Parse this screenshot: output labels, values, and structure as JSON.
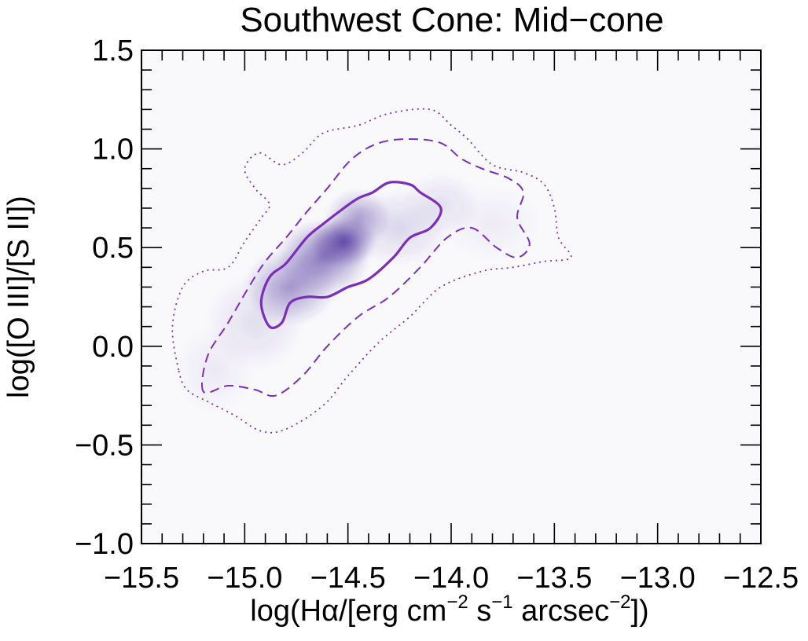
{
  "chart_data": {
    "type": "heatmap",
    "title": "Southwest Cone: Mid−cone",
    "xlabel": {
      "parts": [
        "log(H",
        "α",
        "/[erg cm",
        "−2",
        " s",
        "−1",
        " arcsec",
        "−2",
        "])"
      ]
    },
    "ylabel": "log([O III]/[S II])",
    "xlim": [
      -15.5,
      -12.5
    ],
    "ylim": [
      -1.0,
      1.5
    ],
    "xticks": [
      -15.5,
      -15.0,
      -14.5,
      -14.0,
      -13.5,
      -13.0,
      -12.5
    ],
    "xtick_labels": [
      "−15.5",
      "−15.0",
      "−14.5",
      "−14.0",
      "−13.5",
      "−13.0",
      "−12.5"
    ],
    "yticks": [
      -1.0,
      -0.5,
      0.0,
      0.5,
      1.0,
      1.5
    ],
    "ytick_labels": [
      "−1.0",
      "−0.5",
      "0.0",
      "0.5",
      "1.0",
      "1.5"
    ],
    "grid": false,
    "colors": {
      "background": "#f9f9fc",
      "density": "#4a2f9a",
      "contour": "#7b2fb5"
    },
    "density_blobs": [
      {
        "x": -14.52,
        "y": 0.53,
        "sx": 0.1,
        "sy": 0.08,
        "w": 0.85
      },
      {
        "x": -14.62,
        "y": 0.45,
        "sx": 0.14,
        "sy": 0.12,
        "w": 0.65
      },
      {
        "x": -14.78,
        "y": 0.3,
        "sx": 0.14,
        "sy": 0.12,
        "w": 0.5
      },
      {
        "x": -14.45,
        "y": 0.65,
        "sx": 0.1,
        "sy": 0.09,
        "w": 0.45
      },
      {
        "x": -14.25,
        "y": 0.6,
        "sx": 0.15,
        "sy": 0.12,
        "w": 0.18
      },
      {
        "x": -14.05,
        "y": 0.72,
        "sx": 0.12,
        "sy": 0.1,
        "w": 0.13
      },
      {
        "x": -14.95,
        "y": 0.12,
        "sx": 0.15,
        "sy": 0.15,
        "w": 0.14
      },
      {
        "x": -15.15,
        "y": -0.12,
        "sx": 0.12,
        "sy": 0.14,
        "w": 0.07
      },
      {
        "x": -13.8,
        "y": 0.62,
        "sx": 0.15,
        "sy": 0.12,
        "w": 0.06
      }
    ],
    "contours": [
      {
        "style": "solid",
        "points": [
          [
            -14.88,
            0.1
          ],
          [
            -14.92,
            0.22
          ],
          [
            -14.88,
            0.35
          ],
          [
            -14.8,
            0.42
          ],
          [
            -14.7,
            0.55
          ],
          [
            -14.62,
            0.62
          ],
          [
            -14.52,
            0.7
          ],
          [
            -14.45,
            0.75
          ],
          [
            -14.38,
            0.78
          ],
          [
            -14.3,
            0.83
          ],
          [
            -14.2,
            0.82
          ],
          [
            -14.15,
            0.78
          ],
          [
            -14.05,
            0.7
          ],
          [
            -14.1,
            0.6
          ],
          [
            -14.2,
            0.55
          ],
          [
            -14.28,
            0.45
          ],
          [
            -14.4,
            0.34
          ],
          [
            -14.5,
            0.3
          ],
          [
            -14.6,
            0.25
          ],
          [
            -14.7,
            0.25
          ],
          [
            -14.78,
            0.22
          ],
          [
            -14.82,
            0.12
          ]
        ]
      },
      {
        "style": "dashed",
        "points": [
          [
            -15.2,
            -0.23
          ],
          [
            -15.18,
            -0.05
          ],
          [
            -15.08,
            0.12
          ],
          [
            -14.98,
            0.3
          ],
          [
            -14.9,
            0.43
          ],
          [
            -14.8,
            0.55
          ],
          [
            -14.7,
            0.68
          ],
          [
            -14.6,
            0.8
          ],
          [
            -14.48,
            0.95
          ],
          [
            -14.35,
            1.03
          ],
          [
            -14.2,
            1.05
          ],
          [
            -14.05,
            1.03
          ],
          [
            -13.95,
            0.95
          ],
          [
            -13.85,
            0.9
          ],
          [
            -13.72,
            0.85
          ],
          [
            -13.65,
            0.78
          ],
          [
            -13.68,
            0.65
          ],
          [
            -13.62,
            0.52
          ],
          [
            -13.68,
            0.45
          ],
          [
            -13.78,
            0.5
          ],
          [
            -13.9,
            0.6
          ],
          [
            -14.02,
            0.55
          ],
          [
            -14.15,
            0.4
          ],
          [
            -14.3,
            0.25
          ],
          [
            -14.45,
            0.15
          ],
          [
            -14.6,
            0.0
          ],
          [
            -14.72,
            -0.15
          ],
          [
            -14.85,
            -0.25
          ],
          [
            -14.95,
            -0.22
          ],
          [
            -15.08,
            -0.2
          ]
        ]
      },
      {
        "style": "dotted",
        "points": [
          [
            -15.32,
            -0.12
          ],
          [
            -15.35,
            0.1
          ],
          [
            -15.3,
            0.3
          ],
          [
            -15.2,
            0.38
          ],
          [
            -15.08,
            0.4
          ],
          [
            -15.0,
            0.53
          ],
          [
            -14.92,
            0.65
          ],
          [
            -14.88,
            0.72
          ],
          [
            -14.95,
            0.8
          ],
          [
            -15.0,
            0.9
          ],
          [
            -14.93,
            0.98
          ],
          [
            -14.82,
            0.92
          ],
          [
            -14.72,
            0.98
          ],
          [
            -14.62,
            1.08
          ],
          [
            -14.45,
            1.12
          ],
          [
            -14.3,
            1.18
          ],
          [
            -14.1,
            1.2
          ],
          [
            -14.0,
            1.12
          ],
          [
            -13.92,
            1.05
          ],
          [
            -13.8,
            0.92
          ],
          [
            -13.65,
            0.88
          ],
          [
            -13.55,
            0.82
          ],
          [
            -13.5,
            0.7
          ],
          [
            -13.48,
            0.55
          ],
          [
            -13.42,
            0.45
          ],
          [
            -13.55,
            0.43
          ],
          [
            -13.7,
            0.4
          ],
          [
            -13.85,
            0.38
          ],
          [
            -14.05,
            0.3
          ],
          [
            -14.2,
            0.15
          ],
          [
            -14.35,
            0.02
          ],
          [
            -14.5,
            -0.15
          ],
          [
            -14.62,
            -0.3
          ],
          [
            -14.8,
            -0.42
          ],
          [
            -14.92,
            -0.43
          ],
          [
            -15.05,
            -0.35
          ],
          [
            -15.18,
            -0.28
          ],
          [
            -15.28,
            -0.22
          ]
        ]
      }
    ]
  }
}
